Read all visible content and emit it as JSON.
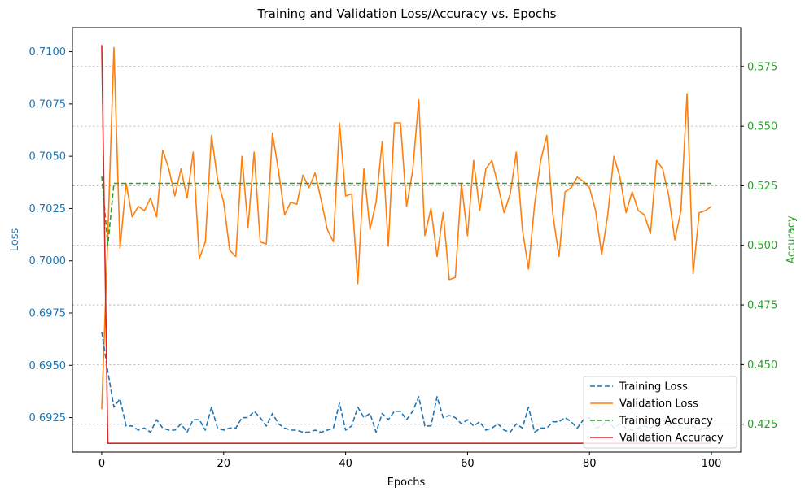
{
  "chart_data": {
    "type": "line",
    "title": "Training and Validation Loss/Accuracy vs. Epochs",
    "xlabel": "Epochs",
    "ylabel_left": "Loss",
    "ylabel_right": "Accuracy",
    "xlim": [
      -4.8,
      104.8
    ],
    "ylim_left": [
      0.69085,
      0.71115
    ],
    "ylim_right": [
      0.4133,
      0.5913
    ],
    "x_ticks": [
      0,
      20,
      40,
      60,
      80,
      100
    ],
    "y_left_ticks": [
      0.6925,
      0.695,
      0.6975,
      0.7,
      0.7025,
      0.705,
      0.7075,
      0.71
    ],
    "y_left_tick_labels": [
      "0.6925",
      "0.6950",
      "0.6975",
      "0.7000",
      "0.7025",
      "0.7050",
      "0.7075",
      "0.7100"
    ],
    "y_right_ticks": [
      0.425,
      0.45,
      0.475,
      0.5,
      0.525,
      0.55,
      0.575
    ],
    "y_right_tick_labels": [
      "0.425",
      "0.450",
      "0.475",
      "0.500",
      "0.525",
      "0.550",
      "0.575"
    ],
    "grid": "horizontal-right-axis",
    "legend": {
      "placement": "lower-right",
      "entries": [
        "Training Loss",
        "Validation Loss",
        "Training Accuracy",
        "Validation Accuracy"
      ]
    },
    "colors": {
      "left_axis": "#1f77b4",
      "right_axis": "#2ca02c"
    },
    "series": [
      {
        "name": "Training Loss",
        "axis": "left",
        "color": "#1f77b4",
        "style": "dashed",
        "values": [
          0.6966,
          0.6947,
          0.693,
          0.6934,
          0.6921,
          0.6921,
          0.6919,
          0.692,
          0.6918,
          0.6924,
          0.692,
          0.6919,
          0.6919,
          0.6922,
          0.6918,
          0.6924,
          0.6924,
          0.6919,
          0.693,
          0.692,
          0.6919,
          0.692,
          0.692,
          0.6925,
          0.6925,
          0.6928,
          0.6925,
          0.6921,
          0.6927,
          0.6922,
          0.692,
          0.6919,
          0.6919,
          0.6918,
          0.6918,
          0.6919,
          0.6918,
          0.6919,
          0.692,
          0.6932,
          0.6919,
          0.6921,
          0.693,
          0.6925,
          0.6927,
          0.6918,
          0.6927,
          0.6924,
          0.6928,
          0.6928,
          0.6924,
          0.6928,
          0.6935,
          0.6921,
          0.6921,
          0.6935,
          0.6925,
          0.6926,
          0.6925,
          0.6922,
          0.6924,
          0.6921,
          0.6923,
          0.6919,
          0.692,
          0.6922,
          0.6919,
          0.6918,
          0.6922,
          0.692,
          0.693,
          0.6918,
          0.692,
          0.692,
          0.6923,
          0.6923,
          0.6925,
          0.6923,
          0.692,
          0.6924,
          0.6925,
          0.692,
          0.6921,
          0.6924,
          0.692,
          0.6922,
          0.692,
          0.6919,
          0.692,
          0.6921,
          0.692,
          0.6922,
          0.6924,
          0.6921,
          0.6923,
          0.692,
          0.692,
          0.6921,
          0.6919,
          0.692,
          0.692
        ]
      },
      {
        "name": "Validation Loss",
        "axis": "left",
        "color": "#ff7f0e",
        "style": "solid",
        "values": [
          0.6929,
          0.7012,
          0.7102,
          0.7006,
          0.7037,
          0.7021,
          0.7026,
          0.7024,
          0.703,
          0.7021,
          0.7053,
          0.7044,
          0.7031,
          0.7044,
          0.703,
          0.7052,
          0.7001,
          0.7009,
          0.706,
          0.7039,
          0.7028,
          0.7005,
          0.7002,
          0.705,
          0.7016,
          0.7052,
          0.7009,
          0.7008,
          0.7061,
          0.7043,
          0.7022,
          0.7028,
          0.7027,
          0.7041,
          0.7035,
          0.7042,
          0.7029,
          0.7015,
          0.7009,
          0.7066,
          0.7031,
          0.7032,
          0.6989,
          0.7044,
          0.7015,
          0.7028,
          0.7057,
          0.7007,
          0.7066,
          0.7066,
          0.7026,
          0.7043,
          0.7077,
          0.7012,
          0.7025,
          0.7002,
          0.7023,
          0.6991,
          0.6992,
          0.7037,
          0.7012,
          0.7048,
          0.7024,
          0.7044,
          0.7048,
          0.7036,
          0.7023,
          0.7032,
          0.7052,
          0.7015,
          0.6996,
          0.7027,
          0.7048,
          0.706,
          0.7022,
          0.7002,
          0.7033,
          0.7035,
          0.704,
          0.7038,
          0.7035,
          0.7024,
          0.7003,
          0.7022,
          0.705,
          0.704,
          0.7023,
          0.7033,
          0.7024,
          0.7022,
          0.7013,
          0.7048,
          0.7044,
          0.7031,
          0.701,
          0.7024,
          0.708,
          0.6994,
          0.7023,
          0.7024,
          0.7026
        ]
      },
      {
        "name": "Training Accuracy",
        "axis": "right",
        "color": "#2ca02c",
        "style": "dashed",
        "values": [
          0.529,
          0.5,
          0.526,
          0.526,
          0.526,
          0.526,
          0.526,
          0.526,
          0.526,
          0.526,
          0.526,
          0.526,
          0.526,
          0.526,
          0.526,
          0.526,
          0.526,
          0.526,
          0.526,
          0.526,
          0.526,
          0.526,
          0.526,
          0.526,
          0.526,
          0.526,
          0.526,
          0.526,
          0.526,
          0.526,
          0.526,
          0.526,
          0.526,
          0.526,
          0.526,
          0.526,
          0.526,
          0.526,
          0.526,
          0.526,
          0.526,
          0.526,
          0.526,
          0.526,
          0.526,
          0.526,
          0.526,
          0.526,
          0.526,
          0.526,
          0.526,
          0.526,
          0.526,
          0.526,
          0.526,
          0.526,
          0.526,
          0.526,
          0.526,
          0.526,
          0.526,
          0.526,
          0.526,
          0.526,
          0.526,
          0.526,
          0.526,
          0.526,
          0.526,
          0.526,
          0.526,
          0.526,
          0.526,
          0.526,
          0.526,
          0.526,
          0.526,
          0.526,
          0.526,
          0.526,
          0.526,
          0.526,
          0.526,
          0.526,
          0.526,
          0.526,
          0.526,
          0.526,
          0.526,
          0.526,
          0.526,
          0.526,
          0.526,
          0.526,
          0.526,
          0.526,
          0.526,
          0.526,
          0.526,
          0.526,
          0.526
        ]
      },
      {
        "name": "Validation Accuracy",
        "axis": "right",
        "color": "#d62728",
        "style": "solid",
        "values": [
          0.584,
          0.417,
          0.417,
          0.417,
          0.417,
          0.417,
          0.417,
          0.417,
          0.417,
          0.417,
          0.417,
          0.417,
          0.417,
          0.417,
          0.417,
          0.417,
          0.417,
          0.417,
          0.417,
          0.417,
          0.417,
          0.417,
          0.417,
          0.417,
          0.417,
          0.417,
          0.417,
          0.417,
          0.417,
          0.417,
          0.417,
          0.417,
          0.417,
          0.417,
          0.417,
          0.417,
          0.417,
          0.417,
          0.417,
          0.417,
          0.417,
          0.417,
          0.417,
          0.417,
          0.417,
          0.417,
          0.417,
          0.417,
          0.417,
          0.417,
          0.417,
          0.417,
          0.417,
          0.417,
          0.417,
          0.417,
          0.417,
          0.417,
          0.417,
          0.417,
          0.417,
          0.417,
          0.417,
          0.417,
          0.417,
          0.417,
          0.417,
          0.417,
          0.417,
          0.417,
          0.417,
          0.417,
          0.417,
          0.417,
          0.417,
          0.417,
          0.417,
          0.417,
          0.417,
          0.417,
          0.417,
          0.417,
          0.417,
          0.417,
          0.417,
          0.417,
          0.417,
          0.417,
          0.417,
          0.417,
          0.417,
          0.417,
          0.417,
          0.417,
          0.417,
          0.417,
          0.417,
          0.417,
          0.417,
          0.417,
          0.417
        ]
      }
    ]
  }
}
